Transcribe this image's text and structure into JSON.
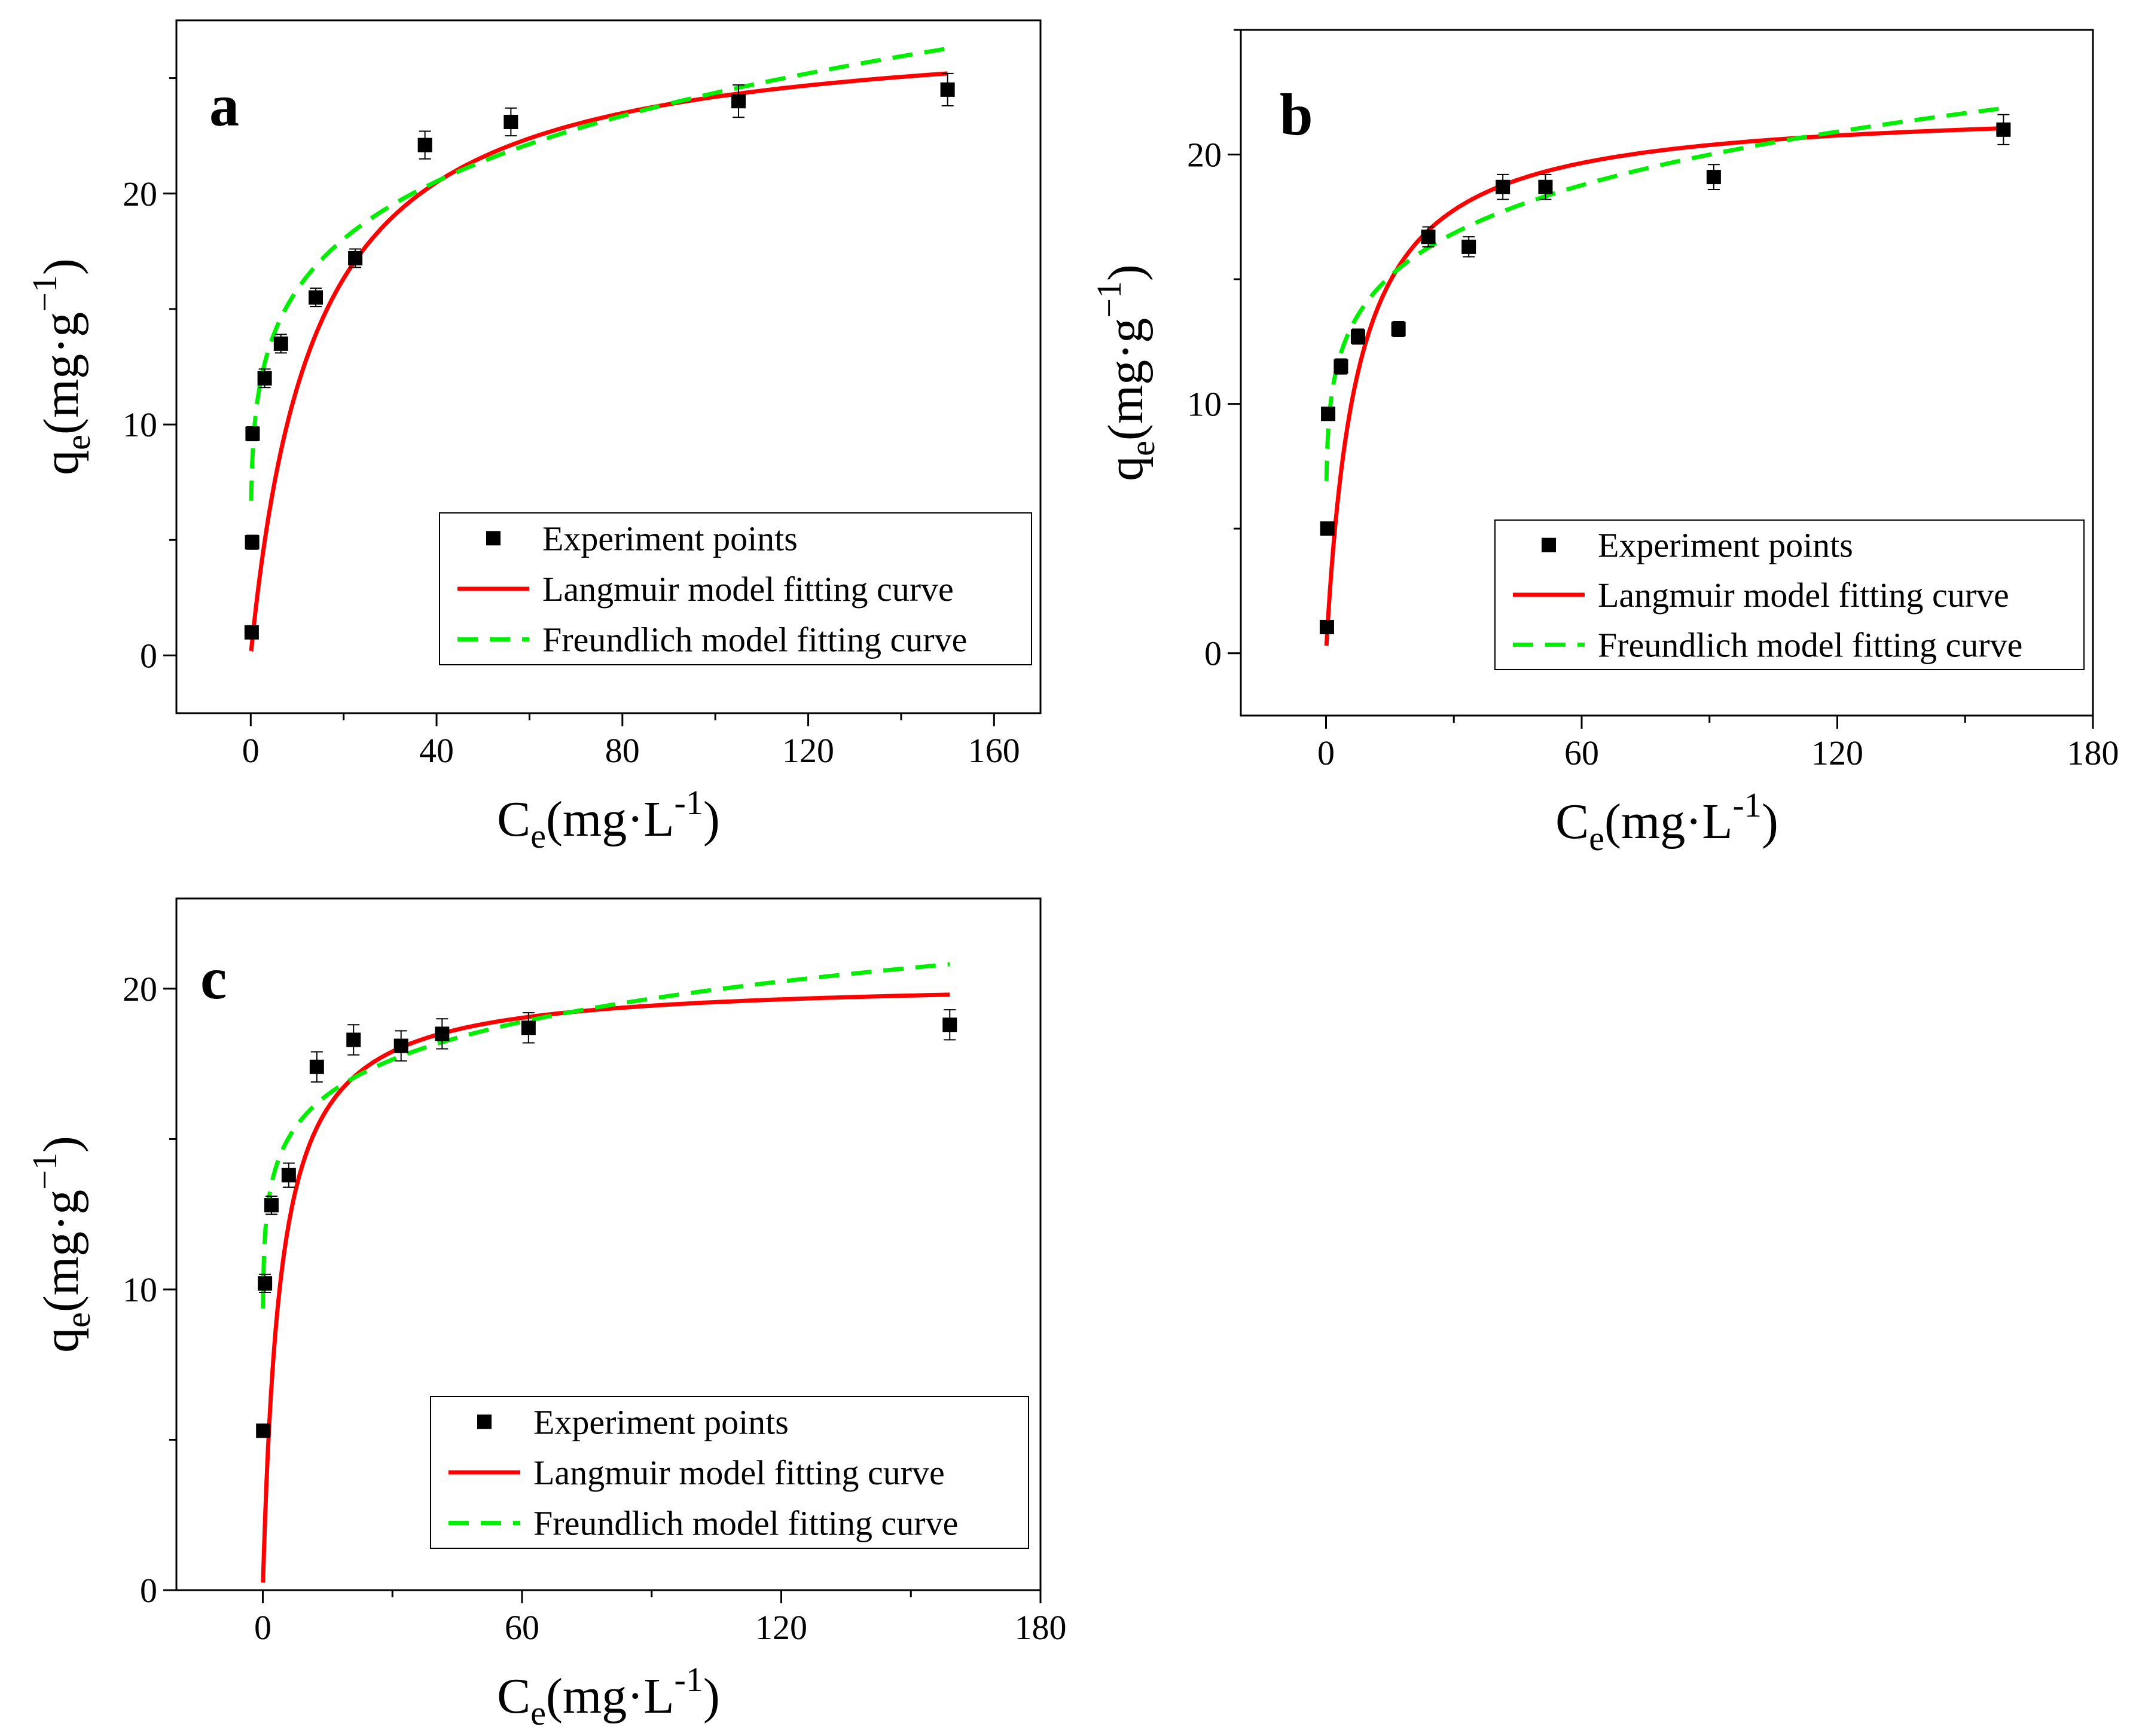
{
  "legend_labels": {
    "points": "Experiment points",
    "langmuir": "Langmuir model fitting curve",
    "freundlich": "Freundlich model fitting curve"
  },
  "colors": {
    "points": "#000000",
    "langmuir": "#ff0000",
    "freundlich": "#00ee00"
  },
  "chart_data": [
    {
      "type": "scatter",
      "panel_label": "a",
      "xlabel": {
        "base": "C",
        "sub": "e",
        "unit": "(mg·L",
        "sup": "-1",
        "close": ")"
      },
      "ylabel": {
        "base": "q",
        "sub": "e",
        "unit": "(mg·g",
        "sup": "−1",
        "close": ")"
      },
      "xlim": [
        -16,
        170
      ],
      "ylim": [
        -2.5,
        27.5
      ],
      "xticks": [
        0,
        40,
        80,
        120,
        160
      ],
      "yticks": [
        0,
        10,
        20
      ],
      "legend_position": "bottom-right",
      "points": {
        "x": [
          0.2,
          0.3,
          0.4,
          3,
          6.5,
          14,
          22.5,
          37.5,
          56,
          105,
          150
        ],
        "y": [
          1.0,
          4.9,
          9.6,
          12.0,
          13.5,
          15.5,
          17.2,
          22.1,
          23.1,
          24.0,
          24.5
        ],
        "err": [
          0,
          0.3,
          0.3,
          0.4,
          0.4,
          0.4,
          0.4,
          0.6,
          0.6,
          0.7,
          0.7
        ]
      },
      "langmuir": {
        "qmax": 27.5,
        "KL": 0.073
      },
      "freundlich": {
        "KF": 10.3,
        "n": 5.35
      },
      "curve_x_range": [
        0.1,
        150
      ]
    },
    {
      "type": "scatter",
      "panel_label": "b",
      "xlabel": {
        "base": "C",
        "sub": "e",
        "unit": "(mg·L",
        "sup": "-1",
        "close": ")"
      },
      "ylabel": {
        "base": "q",
        "sub": "e",
        "unit": "(mg·g",
        "sup": "−1",
        "close": ")"
      },
      "xlim": [
        -20,
        180
      ],
      "ylim": [
        -2.5,
        25
      ],
      "xticks": [
        0,
        60,
        120,
        180
      ],
      "yticks": [
        0,
        10,
        20
      ],
      "legend_position": "bottom-right",
      "points": {
        "x": [
          0.2,
          0.3,
          0.5,
          3.5,
          7.5,
          17,
          24,
          33.5,
          41.5,
          51.5,
          91,
          159
        ],
        "y": [
          1.05,
          5.0,
          9.6,
          11.5,
          12.7,
          13.0,
          16.7,
          16.3,
          18.7,
          18.7,
          19.1,
          21.0
        ],
        "err": [
          0,
          0.2,
          0.2,
          0.3,
          0.3,
          0.3,
          0.4,
          0.4,
          0.5,
          0.5,
          0.5,
          0.6
        ]
      },
      "langmuir": {
        "qmax": 22.0,
        "KL": 0.14
      },
      "freundlich": {
        "KF": 9.9,
        "n": 6.4
      },
      "curve_x_range": [
        0.1,
        159
      ]
    },
    {
      "type": "scatter",
      "panel_label": "c",
      "xlabel": {
        "base": "C",
        "sub": "e",
        "unit": "(mg·L",
        "sup": "-1",
        "close": ")"
      },
      "ylabel": {
        "base": "q",
        "sub": "e",
        "unit": "(mg·g",
        "sup": "−1",
        "close": ")"
      },
      "xlim": [
        -20,
        180
      ],
      "ylim": [
        0,
        23
      ],
      "xticks": [
        0,
        60,
        120,
        180
      ],
      "yticks": [
        0,
        10,
        20
      ],
      "legend_position": "bottom-right",
      "points": {
        "x": [
          0.1,
          0.5,
          2,
          6,
          12.5,
          21,
          32,
          41.5,
          61.5,
          159
        ],
        "y": [
          5.3,
          10.2,
          12.8,
          13.8,
          17.4,
          18.3,
          18.1,
          18.5,
          18.7,
          18.8
        ],
        "err": [
          0,
          0.3,
          0.3,
          0.4,
          0.5,
          0.5,
          0.5,
          0.5,
          0.5,
          0.5
        ]
      },
      "langmuir": {
        "qmax": 20.3,
        "KL": 0.25
      },
      "freundlich": {
        "KF": 12.6,
        "n": 10.1
      },
      "curve_x_range": [
        0.05,
        159
      ]
    }
  ]
}
